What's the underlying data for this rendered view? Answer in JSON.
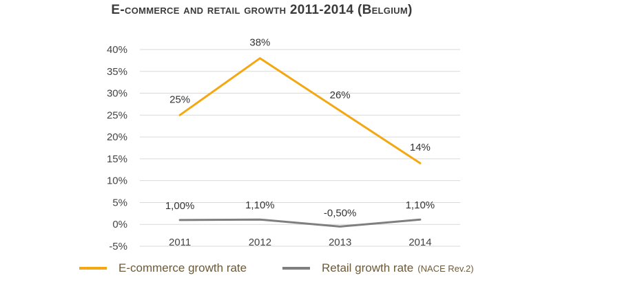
{
  "title": "E-commerce and retail growth 2011-2014 (Belgium)",
  "chart_data": {
    "type": "line",
    "categories": [
      "2011",
      "2012",
      "2013",
      "2014"
    ],
    "ylim": [
      -5,
      40
    ],
    "yticks": [
      -5,
      0,
      5,
      10,
      15,
      20,
      25,
      30,
      35,
      40
    ],
    "ytick_labels": [
      "-5%",
      "0%",
      "5%",
      "10%",
      "15%",
      "20%",
      "25%",
      "30%",
      "35%",
      "40%"
    ],
    "grid": true,
    "legend_position": "bottom",
    "series": [
      {
        "name": "E-commerce growth rate",
        "name_note": "",
        "color": "#f5a711",
        "values": [
          25,
          38,
          26,
          14
        ],
        "labels": [
          "25%",
          "38%",
          "26%",
          "14%"
        ]
      },
      {
        "name": "Retail growth rate",
        "name_note": "(NACE Rev.2)",
        "color": "#7f7f7f",
        "values": [
          1.0,
          1.1,
          -0.5,
          1.1
        ],
        "labels": [
          "1,00%",
          "1,10%",
          "-0,50%",
          "1,10%"
        ]
      }
    ]
  }
}
